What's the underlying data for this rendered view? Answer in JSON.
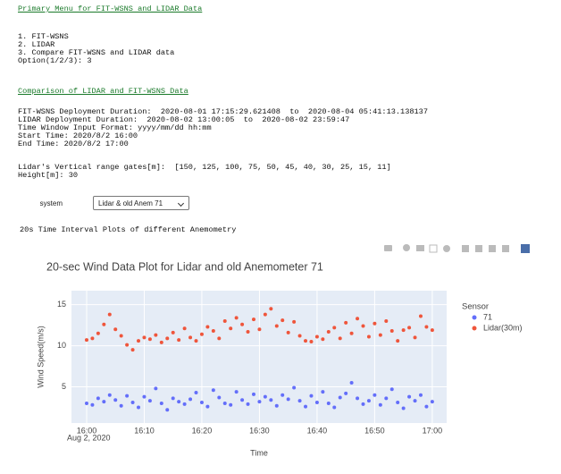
{
  "output": {
    "menu_heading": "Primary Menu for FIT-WSNS and LIDAR Data",
    "menu_lines": [
      "1. FIT-WSNS",
      "2. LIDAR",
      "3. Compare FIT-WSNS and LIDAR data",
      "Option(1/2/3): 3"
    ],
    "comparison_heading": "Comparison of LIDAR and FIT-WSNS Data",
    "info_lines": [
      "FIT-WSNS Deployment Duration:  2020-08-01 17:15:29.621408  to  2020-08-04 05:41:13.138137",
      "LIDAR Deployment Duration:  2020-08-02 13:00:05  to  2020-08-02 23:59:47",
      "Time Window Input Format: yyyy/mm/dd hh:mm",
      "Start Time: 2020/8/2 16:00",
      "End Time: 2020/8/2 17:00"
    ],
    "range_lines": [
      "Lidar's Vertical range gates[m]:  [150, 125, 100, 75, 50, 45, 40, 30, 25, 15, 11]",
      "Height[m]: 30"
    ],
    "dropdown_label": "system",
    "dropdown_value": "Lidar & old Anem 71",
    "plots_heading": "20s Time Interval Plots of different Anemometry"
  },
  "chart_data": {
    "type": "scatter",
    "title": "20-sec Wind Data Plot for Lidar and old Anemometer 71",
    "x_label": "Time",
    "y_label": "Wind Speed(m/s)",
    "x_date": "Aug 2, 2020",
    "legend_title": "Sensor",
    "legend": "right",
    "grid": true,
    "x": [
      "2020-08-02 16:00",
      "2020-08-02 16:01",
      "2020-08-02 16:02",
      "2020-08-02 16:03",
      "2020-08-02 16:04",
      "2020-08-02 16:05",
      "2020-08-02 16:06",
      "2020-08-02 16:07",
      "2020-08-02 16:08",
      "2020-08-02 16:09",
      "2020-08-02 16:10",
      "2020-08-02 16:11",
      "2020-08-02 16:12",
      "2020-08-02 16:13",
      "2020-08-02 16:14",
      "2020-08-02 16:15",
      "2020-08-02 16:16",
      "2020-08-02 16:17",
      "2020-08-02 16:18",
      "2020-08-02 16:19",
      "2020-08-02 16:20",
      "2020-08-02 16:21",
      "2020-08-02 16:22",
      "2020-08-02 16:23",
      "2020-08-02 16:24",
      "2020-08-02 16:25",
      "2020-08-02 16:26",
      "2020-08-02 16:27",
      "2020-08-02 16:28",
      "2020-08-02 16:29",
      "2020-08-02 16:30",
      "2020-08-02 16:31",
      "2020-08-02 16:32",
      "2020-08-02 16:33",
      "2020-08-02 16:34",
      "2020-08-02 16:35",
      "2020-08-02 16:36",
      "2020-08-02 16:37",
      "2020-08-02 16:38",
      "2020-08-02 16:39",
      "2020-08-02 16:40",
      "2020-08-02 16:41",
      "2020-08-02 16:42",
      "2020-08-02 16:43",
      "2020-08-02 16:44",
      "2020-08-02 16:45",
      "2020-08-02 16:46",
      "2020-08-02 16:47",
      "2020-08-02 16:48",
      "2020-08-02 16:49",
      "2020-08-02 16:50",
      "2020-08-02 16:51",
      "2020-08-02 16:52",
      "2020-08-02 16:53",
      "2020-08-02 16:54",
      "2020-08-02 16:55",
      "2020-08-02 16:56",
      "2020-08-02 16:57",
      "2020-08-02 16:58",
      "2020-08-02 16:59",
      "2020-08-02 17:00"
    ],
    "series": [
      {
        "name": "71",
        "color": "#636efa",
        "values": [
          3.0,
          2.8,
          3.6,
          3.2,
          4.0,
          3.4,
          2.7,
          3.9,
          3.1,
          2.5,
          3.8,
          3.3,
          4.8,
          3.0,
          2.2,
          3.6,
          3.2,
          2.9,
          3.5,
          4.3,
          3.1,
          2.6,
          4.6,
          3.7,
          3.0,
          2.8,
          4.4,
          3.4,
          2.9,
          4.1,
          3.2,
          3.8,
          3.4,
          2.7,
          4.0,
          3.5,
          4.9,
          3.3,
          2.6,
          3.9,
          3.1,
          4.4,
          3.0,
          2.5,
          3.7,
          4.2,
          5.5,
          3.6,
          2.9,
          3.3,
          4.0,
          2.8,
          3.6,
          4.7,
          3.1,
          2.4,
          3.8,
          3.3,
          4.0,
          2.6,
          3.2
        ]
      },
      {
        "name": "Lidar(30m)",
        "color": "#ef553b",
        "values": [
          10.7,
          10.9,
          11.5,
          12.6,
          13.8,
          12.0,
          11.2,
          10.1,
          9.5,
          10.6,
          11.0,
          10.8,
          11.3,
          10.4,
          10.9,
          11.6,
          10.7,
          12.1,
          11.0,
          10.6,
          11.4,
          12.3,
          11.8,
          10.9,
          13.0,
          12.1,
          13.4,
          12.6,
          11.7,
          13.2,
          12.0,
          13.8,
          14.5,
          12.4,
          13.1,
          11.6,
          12.9,
          11.2,
          10.6,
          10.5,
          11.1,
          10.8,
          11.7,
          12.2,
          10.9,
          12.8,
          11.5,
          13.3,
          12.4,
          11.1,
          12.7,
          11.3,
          13.0,
          11.8,
          10.6,
          11.9,
          12.2,
          11.0,
          13.6,
          12.3,
          11.9
        ]
      }
    ],
    "xlim": [
      "2020-08-02 15:57:22",
      "2020-08-02 17:02:30"
    ],
    "xticks": [
      {
        "value": "2020-08-02 16:00",
        "label": "16:00"
      },
      {
        "value": "2020-08-02 16:10",
        "label": "16:10"
      },
      {
        "value": "2020-08-02 16:20",
        "label": "16:20"
      },
      {
        "value": "2020-08-02 16:30",
        "label": "16:30"
      },
      {
        "value": "2020-08-02 16:40",
        "label": "16:40"
      },
      {
        "value": "2020-08-02 16:50",
        "label": "16:50"
      },
      {
        "value": "2020-08-02 17:00",
        "label": "17:00"
      }
    ],
    "ylim": [
      0.6,
      16.7
    ],
    "yticks": [
      5,
      10,
      15
    ]
  }
}
